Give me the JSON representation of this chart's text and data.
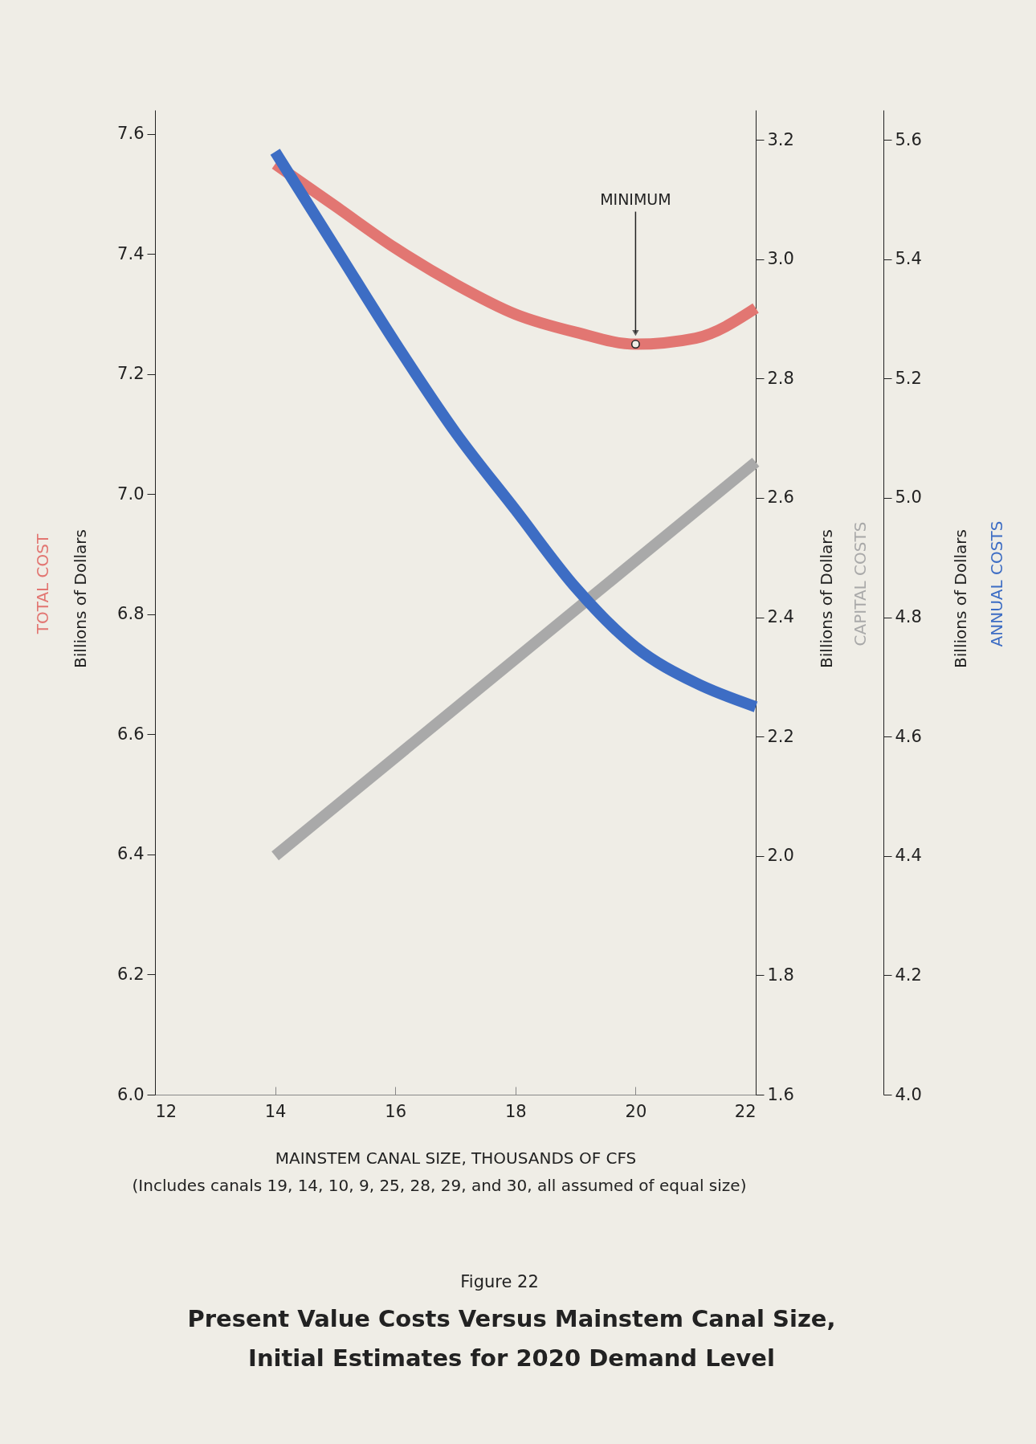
{
  "chart_data": {
    "type": "line",
    "title": "Present Value Costs Versus Mainstem Canal Size, Initial Estimates for 2020 Demand Level",
    "xlabel": "MAINSTEM CANAL SIZE, THOUSANDS OF CFS",
    "ylabel": "Billions of Dollars",
    "y2label": "Billions of Dollars",
    "y3label": "Billions of Dollars",
    "xlim": [
      12,
      22
    ],
    "xticks": [
      12,
      14,
      16,
      18,
      20,
      22
    ],
    "ylim": [
      6.0,
      7.64
    ],
    "yticks": [
      {
        "value": 6,
        "label": "6.0"
      },
      6.2,
      6.4,
      6.6,
      6.8,
      {
        "value": 7,
        "label": "7.0"
      },
      7.2,
      7.4,
      7.6
    ],
    "y2lim": [
      1.6,
      3.25
    ],
    "y2ticks": [
      1.6,
      1.8,
      {
        "value": 2,
        "label": "2.0"
      },
      2.2,
      2.4,
      2.6,
      2.8,
      {
        "value": 3,
        "label": "3.0"
      },
      3.2
    ],
    "y3lim": [
      4.0,
      5.65
    ],
    "y3ticks": [
      {
        "value": 4,
        "label": "4.0"
      },
      4.2,
      4.4,
      4.6,
      4.8,
      {
        "value": 5,
        "label": "5.0"
      },
      5.2,
      5.4,
      5.6
    ],
    "line_style": "solid",
    "marker": "none",
    "series": [
      {
        "name": "TOTAL COST",
        "color": "#e27672",
        "axis": "y",
        "x": [
          14,
          15,
          16,
          17,
          18,
          19,
          20,
          21,
          22
        ],
        "values": [
          7.55,
          7.48,
          7.41,
          7.35,
          7.3,
          7.27,
          7.25,
          7.26,
          7.31
        ]
      },
      {
        "name": "CAPITAL COSTS",
        "color": "#a9a9a9",
        "axis": "y2",
        "x": [
          14,
          22
        ],
        "values": [
          2.0,
          2.66
        ]
      },
      {
        "name": "ANNUAL COSTS",
        "color": "#3d6dc4",
        "axis": "y3",
        "x": [
          14,
          15,
          16,
          17,
          18,
          19,
          20,
          21,
          22
        ],
        "values": [
          5.58,
          5.42,
          5.26,
          5.11,
          4.98,
          4.85,
          4.75,
          4.69,
          4.65
        ]
      }
    ],
    "annotations": [
      "MINIMUM",
      "(Includes canals 19, 14, 10, 9, 25, 28, 29, and 30, all assumed of equal size)",
      "Figure 22"
    ]
  }
}
